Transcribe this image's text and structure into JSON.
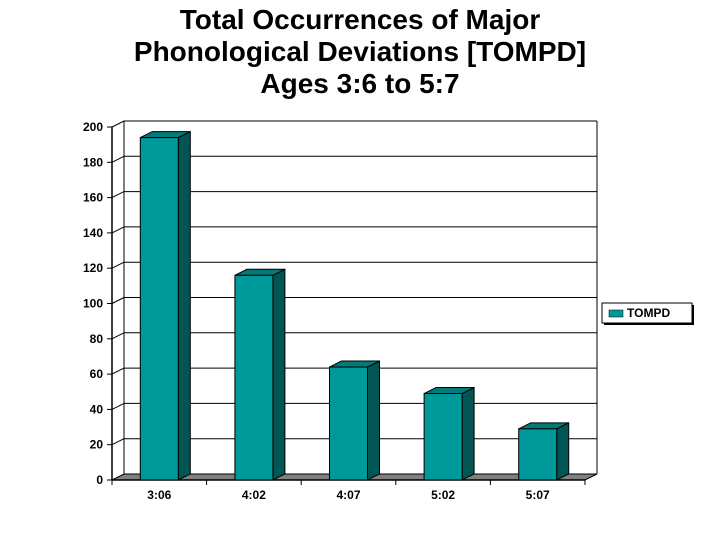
{
  "title": {
    "line1": "Total Occurrences of Major",
    "line2": "Phonological Deviations [TOMPD]",
    "line3": "Ages 3:6 to 5:7"
  },
  "chart_data": {
    "type": "bar",
    "categories": [
      "3:06",
      "4:02",
      "4:07",
      "5:02",
      "5:07"
    ],
    "series": [
      {
        "name": "TOMPD",
        "values": [
          194,
          116,
          64,
          49,
          29
        ]
      }
    ],
    "ylim": [
      0,
      200
    ],
    "yticks": [
      0,
      20,
      40,
      60,
      80,
      100,
      120,
      140,
      160,
      180,
      200
    ],
    "grid": true,
    "legend": "right",
    "colors": {
      "bar_front": "#009999",
      "bar_side": "#005555",
      "bar_top": "#007a7a",
      "floor": "#808080"
    }
  }
}
